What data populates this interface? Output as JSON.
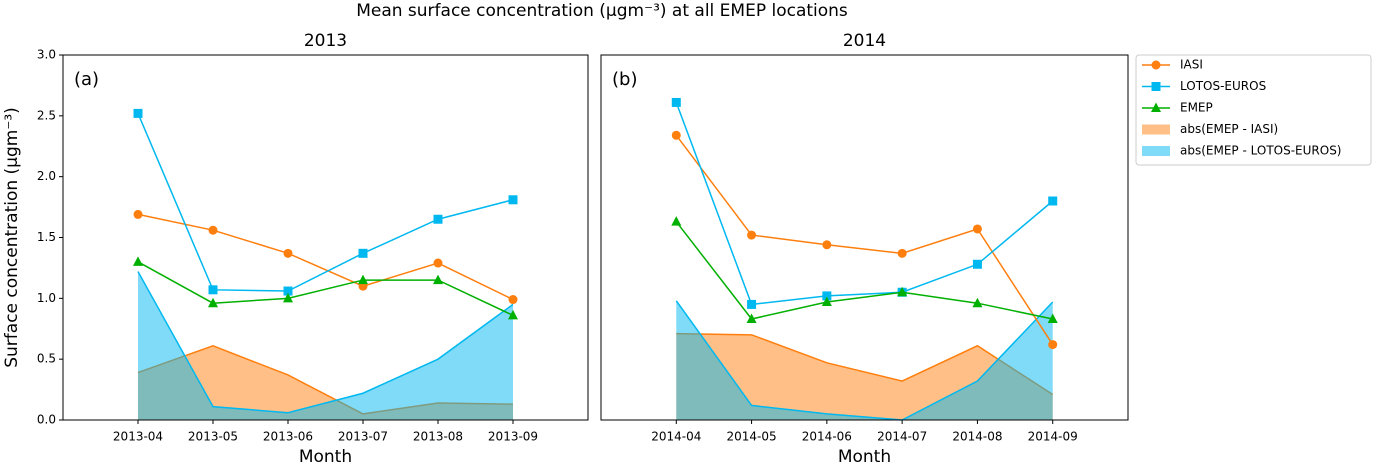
{
  "title": "Mean surface concentration (μgm⁻³) at all EMEP locations",
  "chart_data": [
    {
      "type": "line",
      "title": "2013",
      "panel_label": "(a)",
      "x_label": "Month",
      "y_label": "Surface concentration (μgm⁻³)",
      "categories": [
        "2013-04",
        "2013-05",
        "2013-06",
        "2013-07",
        "2013-08",
        "2013-09"
      ],
      "ylim": [
        0,
        3
      ],
      "yticks": [
        {
          "value": 0,
          "label": "0.0"
        },
        {
          "value": 0.5,
          "label": "0.5"
        },
        {
          "value": 1,
          "label": "1.0"
        },
        {
          "value": 1.5,
          "label": "1.5"
        },
        {
          "value": 2,
          "label": "2.0"
        },
        {
          "value": 2.5,
          "label": "2.5"
        },
        {
          "value": 3,
          "label": "3.0"
        }
      ],
      "series": [
        {
          "name": "IASI",
          "color": "#ff7f0e",
          "style": "line",
          "marker": "circle",
          "values": [
            1.69,
            1.56,
            1.37,
            1.1,
            1.29,
            0.99
          ]
        },
        {
          "name": "LOTOS-EUROS",
          "color": "#00b8f0",
          "style": "line",
          "marker": "square",
          "values": [
            2.52,
            1.07,
            1.06,
            1.37,
            1.65,
            1.81
          ]
        },
        {
          "name": "EMEP",
          "color": "#00b000",
          "style": "line",
          "marker": "triangle",
          "values": [
            1.3,
            0.96,
            1.0,
            1.15,
            1.15,
            0.86
          ]
        },
        {
          "name": "abs(EMEP - IASI)",
          "color": "#ff7f0e",
          "style": "area",
          "values": [
            0.39,
            0.61,
            0.37,
            0.05,
            0.14,
            0.13
          ]
        },
        {
          "name": "abs(EMEP - LOTOS-EUROS)",
          "color": "#00b8f0",
          "style": "area",
          "values": [
            1.22,
            0.11,
            0.06,
            0.22,
            0.5,
            0.95
          ]
        }
      ]
    },
    {
      "type": "line",
      "title": "2014",
      "panel_label": "(b)",
      "x_label": "Month",
      "categories": [
        "2014-04",
        "2014-05",
        "2014-06",
        "2014-07",
        "2014-08",
        "2014-09"
      ],
      "ylim": [
        0,
        3
      ],
      "series": [
        {
          "color": "#ff7f0e",
          "style": "line",
          "marker": "circle",
          "values": [
            2.34,
            1.52,
            1.44,
            1.37,
            1.57,
            0.62
          ]
        },
        {
          "color": "#00b8f0",
          "style": "line",
          "marker": "square",
          "values": [
            2.61,
            0.95,
            1.02,
            1.05,
            1.28,
            1.8
          ]
        },
        {
          "color": "#00b000",
          "style": "line",
          "marker": "triangle",
          "values": [
            1.63,
            0.83,
            0.97,
            1.05,
            0.96,
            0.83
          ]
        },
        {
          "color": "#ff7f0e",
          "style": "area",
          "values": [
            0.71,
            0.7,
            0.47,
            0.32,
            0.61,
            0.21
          ]
        },
        {
          "color": "#00b8f0",
          "style": "area",
          "values": [
            0.98,
            0.12,
            0.05,
            0.0,
            0.32,
            0.97
          ]
        }
      ]
    }
  ]
}
